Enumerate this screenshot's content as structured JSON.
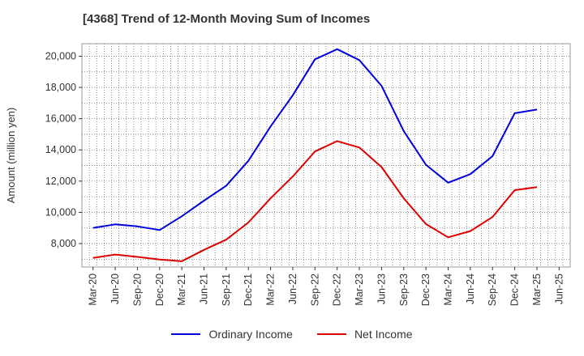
{
  "chart_data": {
    "type": "line",
    "title": "[4368]  Trend of 12-Month Moving Sum of Incomes",
    "xlabel": "",
    "ylabel": "Amount (million yen)",
    "ylim": [
      6500,
      20800
    ],
    "yticks": [
      8000,
      10000,
      12000,
      14000,
      16000,
      18000,
      20000
    ],
    "ytick_labels": [
      "8,000",
      "10,000",
      "12,000",
      "14,000",
      "16,000",
      "18,000",
      "20,000"
    ],
    "x_tick_labels": [
      "Mar-20",
      "Jun-20",
      "Sep-20",
      "Dec-20",
      "Mar-21",
      "Jun-21",
      "Sep-21",
      "Dec-21",
      "Mar-22",
      "Jun-22",
      "Sep-22",
      "Dec-22",
      "Mar-23",
      "Jun-23",
      "Sep-23",
      "Dec-23",
      "Mar-24",
      "Jun-24",
      "Sep-24",
      "Dec-24",
      "Mar-25",
      "Jun-25"
    ],
    "grid": true,
    "legend_position": "bottom-center",
    "series": [
      {
        "name": "Ordinary Income",
        "color": "#0000dd",
        "values": [
          9000,
          9230,
          9100,
          8870,
          9750,
          10750,
          11700,
          13300,
          15500,
          17500,
          19800,
          20450,
          19750,
          18100,
          15200,
          13050,
          11900,
          12450,
          13600,
          16350,
          16580
        ]
      },
      {
        "name": "Net Income",
        "color": "#dd0000",
        "values": [
          7080,
          7300,
          7150,
          6980,
          6870,
          7600,
          8250,
          9350,
          10900,
          12300,
          13900,
          14560,
          14150,
          12900,
          10900,
          9250,
          8400,
          8800,
          9700,
          11420,
          11620
        ]
      }
    ]
  }
}
